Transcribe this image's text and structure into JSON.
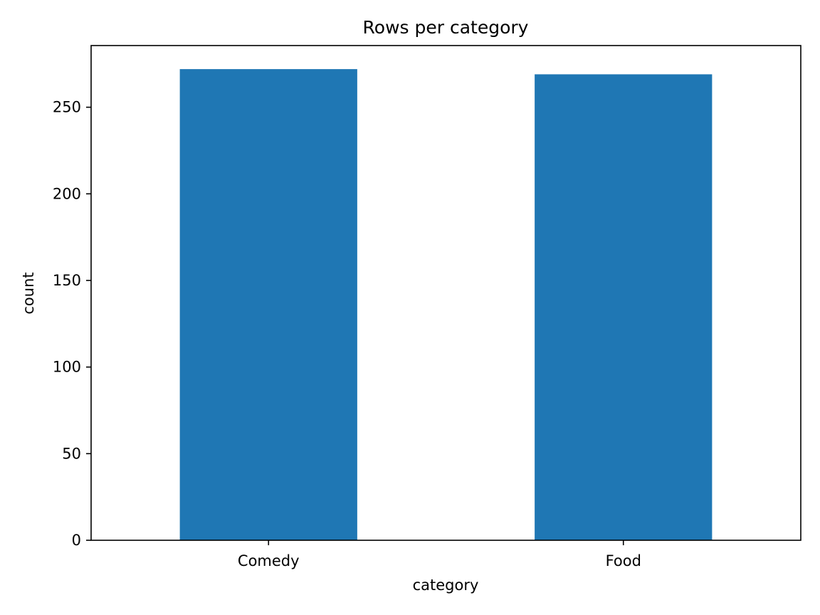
{
  "chart_data": {
    "type": "bar",
    "title": "Rows per category",
    "xlabel": "category",
    "ylabel": "count",
    "categories": [
      "Comedy",
      "Food"
    ],
    "values": [
      272,
      269
    ],
    "ylim": [
      0,
      285.6
    ],
    "yticks": [
      0,
      50,
      100,
      150,
      200,
      250
    ],
    "bar_color": "#1f77b4",
    "grid": false,
    "legend": false
  }
}
